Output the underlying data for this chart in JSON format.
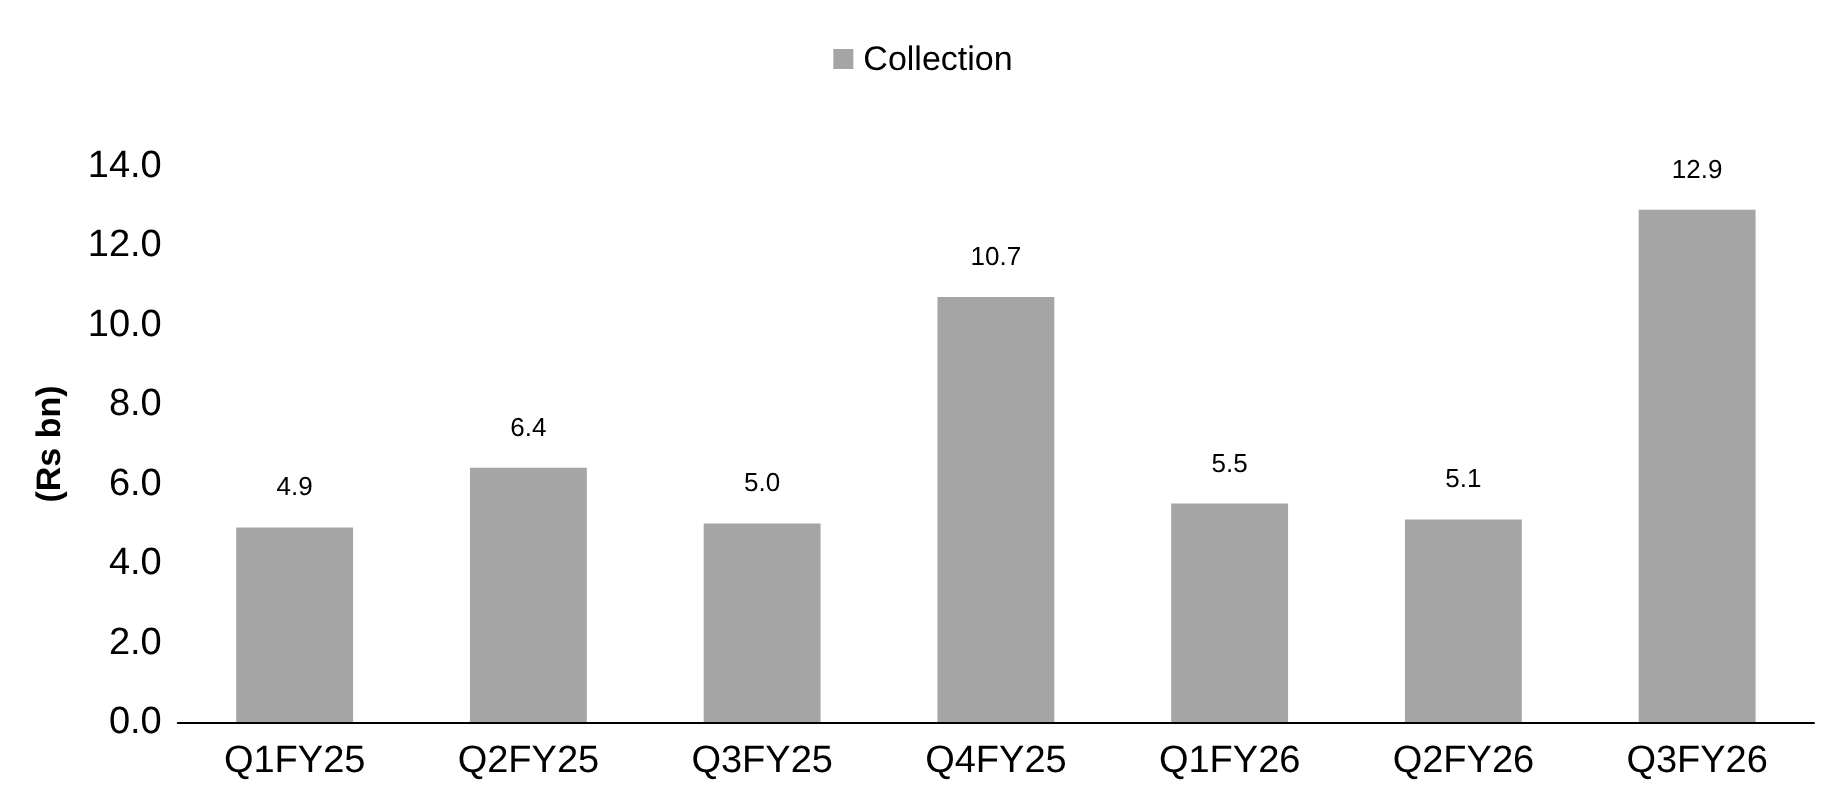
{
  "chart_data": {
    "type": "bar",
    "ylabel": "(Rs bn)",
    "categories": [
      "Q1FY25",
      "Q2FY25",
      "Q3FY25",
      "Q4FY25",
      "Q1FY26",
      "Q2FY26",
      "Q3FY26"
    ],
    "series": [
      {
        "name": "Collection",
        "color": "#a5a5a5",
        "values": [
          4.9,
          6.4,
          5.0,
          10.7,
          5.5,
          5.1,
          12.9
        ],
        "value_labels": [
          "4.9",
          "6.4",
          "5.0",
          "10.7",
          "5.5",
          "5.1",
          "12.9"
        ]
      }
    ],
    "ylim": [
      0,
      14
    ],
    "yticks": [
      {
        "value": 0,
        "label": "0.0"
      },
      {
        "value": 2,
        "label": "2.0"
      },
      {
        "value": 4,
        "label": "4.0"
      },
      {
        "value": 6,
        "label": "6.0"
      },
      {
        "value": 8,
        "label": "8.0"
      },
      {
        "value": 10,
        "label": "10.0"
      },
      {
        "value": 12,
        "label": "12.0"
      },
      {
        "value": 14,
        "label": "14.0"
      }
    ],
    "grid": false,
    "legend": "top"
  }
}
